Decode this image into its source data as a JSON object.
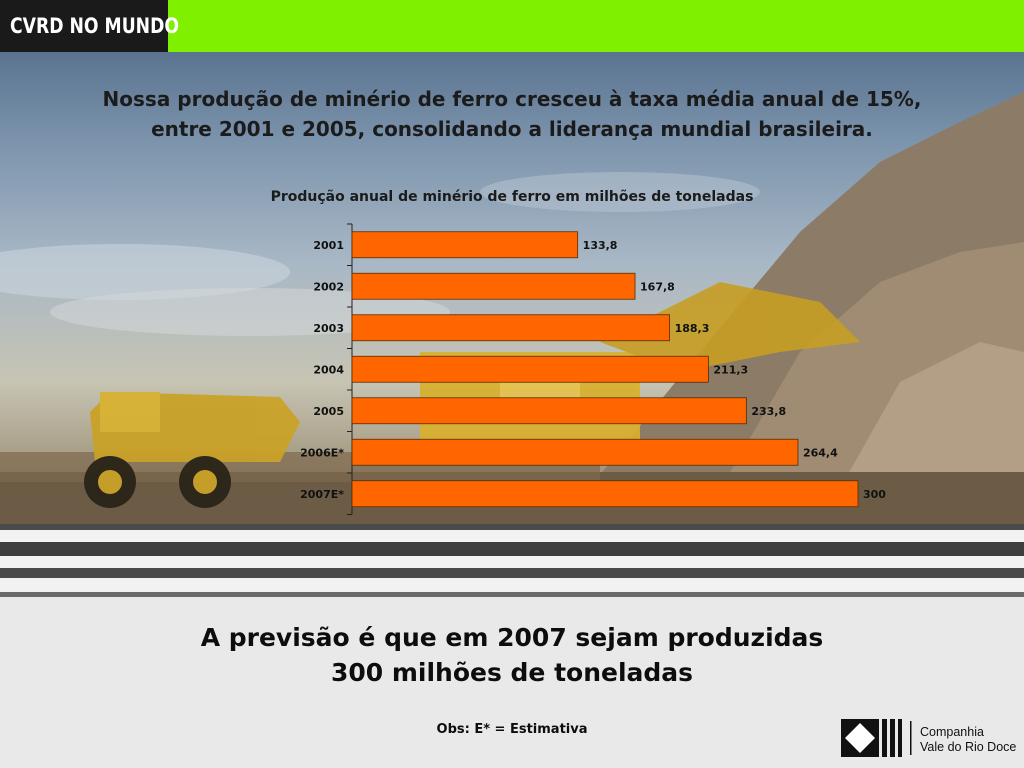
{
  "header": {
    "brand": "CVRD NO MUNDO",
    "accent_color": "#7ef000"
  },
  "headline": {
    "line1": "Nossa produção de minério de ferro cresceu à taxa média anual de 15%,",
    "line2": "entre 2001 e 2005, consolidando a liderança mundial brasileira."
  },
  "chart_data": {
    "type": "bar",
    "orientation": "horizontal",
    "title": "Produção anual de minério de ferro em milhões de toneladas",
    "categories": [
      "2001",
      "2002",
      "2003",
      "2004",
      "2005",
      "2006E*",
      "2007E*"
    ],
    "values": [
      133.8,
      167.8,
      188.3,
      211.3,
      233.8,
      264.4,
      300
    ],
    "value_labels": [
      "133,8",
      "167,8",
      "188,3",
      "211,3",
      "233,8",
      "264,4",
      "300"
    ],
    "xlim": [
      0,
      300
    ],
    "bar_color": "#ff6600",
    "grid": false,
    "legend": "none"
  },
  "message": {
    "line1": "A previsão é que em 2007 sejam produzidas",
    "line2": "300 milhões de toneladas"
  },
  "note": "Obs: E* = Estimativa",
  "logo": {
    "name_line1": "Companhia",
    "name_line2": "Vale do Rio Doce",
    "icon": "cvrd-logo-icon"
  }
}
